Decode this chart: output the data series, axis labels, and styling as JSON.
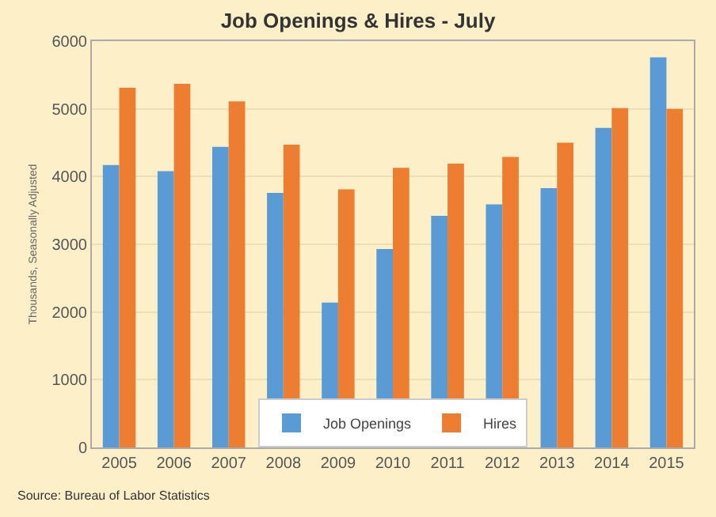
{
  "chart_data": {
    "type": "bar",
    "title": "Job Openings & Hires - July",
    "ylabel": "Thousands, Seasonally Adjusted",
    "categories": [
      "2005",
      "2006",
      "2007",
      "2008",
      "2009",
      "2010",
      "2011",
      "2012",
      "2013",
      "2014",
      "2015"
    ],
    "series": [
      {
        "name": "Job Openings",
        "color": "#5b9bd5",
        "values": [
          4170,
          4080,
          4440,
          3760,
          2140,
          2930,
          3420,
          3590,
          3830,
          4720,
          5760
        ]
      },
      {
        "name": "Hires",
        "color": "#ed7d31",
        "values": [
          5310,
          5370,
          5110,
          4470,
          3810,
          4130,
          4190,
          4290,
          4500,
          5010,
          5000
        ]
      }
    ],
    "ylim": [
      0,
      6000
    ],
    "yticks": [
      0,
      1000,
      2000,
      3000,
      4000,
      5000,
      6000
    ],
    "grid": "y",
    "legend": "bottom",
    "annotations": [
      "Source: Bureau of Labor Statistics"
    ]
  }
}
